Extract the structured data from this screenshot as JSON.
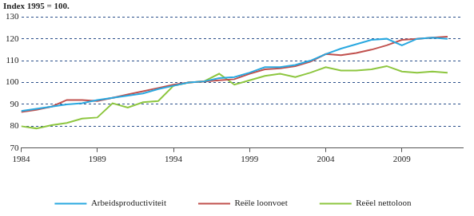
{
  "chart_data": {
    "type": "line",
    "title": "Index 1995 = 100.",
    "x": [
      1984,
      1985,
      1986,
      1987,
      1988,
      1989,
      1990,
      1991,
      1992,
      1993,
      1994,
      1995,
      1996,
      1997,
      1998,
      1999,
      2000,
      2001,
      2002,
      2003,
      2004,
      2005,
      2006,
      2007,
      2008,
      2009,
      2010,
      2011,
      2012
    ],
    "series": [
      {
        "name": "Arbeidsproductiviteit",
        "color": "#29a8e0",
        "values": [
          87,
          88,
          89,
          90,
          90.5,
          92,
          93,
          94,
          95,
          97,
          98.5,
          100,
          100.5,
          102,
          102.5,
          104.5,
          107,
          107,
          108,
          110,
          113,
          115.5,
          117.5,
          119.5,
          120,
          117,
          120,
          120.5,
          120
        ]
      },
      {
        "name": "Reële loonvoet",
        "color": "#c0504d",
        "values": [
          86.5,
          87.5,
          89,
          92,
          92,
          91.5,
          93,
          94.5,
          96,
          97.5,
          99,
          100,
          100.5,
          101,
          101.5,
          104,
          106,
          106.5,
          107.5,
          109.5,
          113,
          112.5,
          113.5,
          115,
          117,
          119.5,
          120,
          120.5,
          121
        ]
      },
      {
        "name": "Reëel nettoloon",
        "color": "#8dc63f",
        "values": [
          80,
          79,
          80.5,
          81.5,
          83.5,
          84,
          90.5,
          88.5,
          91,
          91.5,
          98.5,
          100,
          100.5,
          104,
          99,
          101,
          103,
          104,
          102.5,
          104.5,
          107,
          105.5,
          105.5,
          106,
          107.5,
          105,
          104.5,
          105,
          104.5
        ]
      }
    ],
    "xlim": [
      1984,
      2013
    ],
    "xticks": [
      1984,
      1989,
      1994,
      1999,
      2004,
      2009
    ],
    "ylim": [
      70,
      130
    ],
    "yticks": [
      70,
      80,
      90,
      100,
      110,
      120,
      130
    ],
    "grid": true,
    "legend": "bottom"
  }
}
